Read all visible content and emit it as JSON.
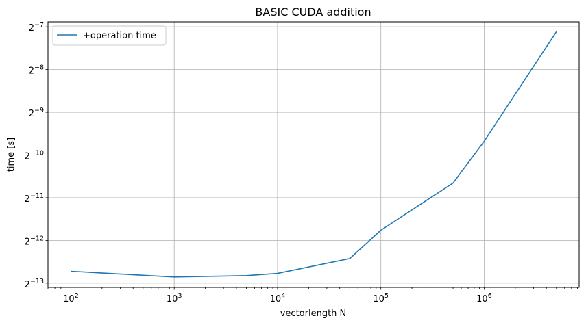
{
  "chart_data": {
    "type": "line",
    "title": "BASIC CUDA addition",
    "xlabel": "vectorlength N",
    "ylabel": "time [s]",
    "xscale": "log10",
    "yscale": "log2",
    "xlim": [
      60,
      8300000
    ],
    "ylim": [
      0.000114,
      0.00846
    ],
    "grid": true,
    "legend_position": "top-left",
    "x_ticks": [
      {
        "base": "10",
        "exp": "2",
        "value": 100
      },
      {
        "base": "10",
        "exp": "3",
        "value": 1000
      },
      {
        "base": "10",
        "exp": "4",
        "value": 10000
      },
      {
        "base": "10",
        "exp": "5",
        "value": 100000
      },
      {
        "base": "10",
        "exp": "6",
        "value": 1000000
      }
    ],
    "y_ticks": [
      {
        "base": "2",
        "exp": "−13",
        "value": 0.00012207
      },
      {
        "base": "2",
        "exp": "−12",
        "value": 0.00024414
      },
      {
        "base": "2",
        "exp": "−11",
        "value": 0.00048828
      },
      {
        "base": "2",
        "exp": "−10",
        "value": 0.00097656
      },
      {
        "base": "2",
        "exp": "−9",
        "value": 0.00195313
      },
      {
        "base": "2",
        "exp": "−8",
        "value": 0.00390625
      },
      {
        "base": "2",
        "exp": "−7",
        "value": 0.0078125
      }
    ],
    "series": [
      {
        "name": "+operation time",
        "color": "#1f77b4",
        "x": [
          100,
          1000,
          5000,
          10000,
          50000,
          100000,
          500000,
          1000000,
          5000000
        ],
        "y": [
          0.000148,
          0.000135,
          0.000138,
          0.000143,
          0.000182,
          0.000288,
          0.00062,
          0.00122,
          0.00722
        ]
      }
    ]
  }
}
